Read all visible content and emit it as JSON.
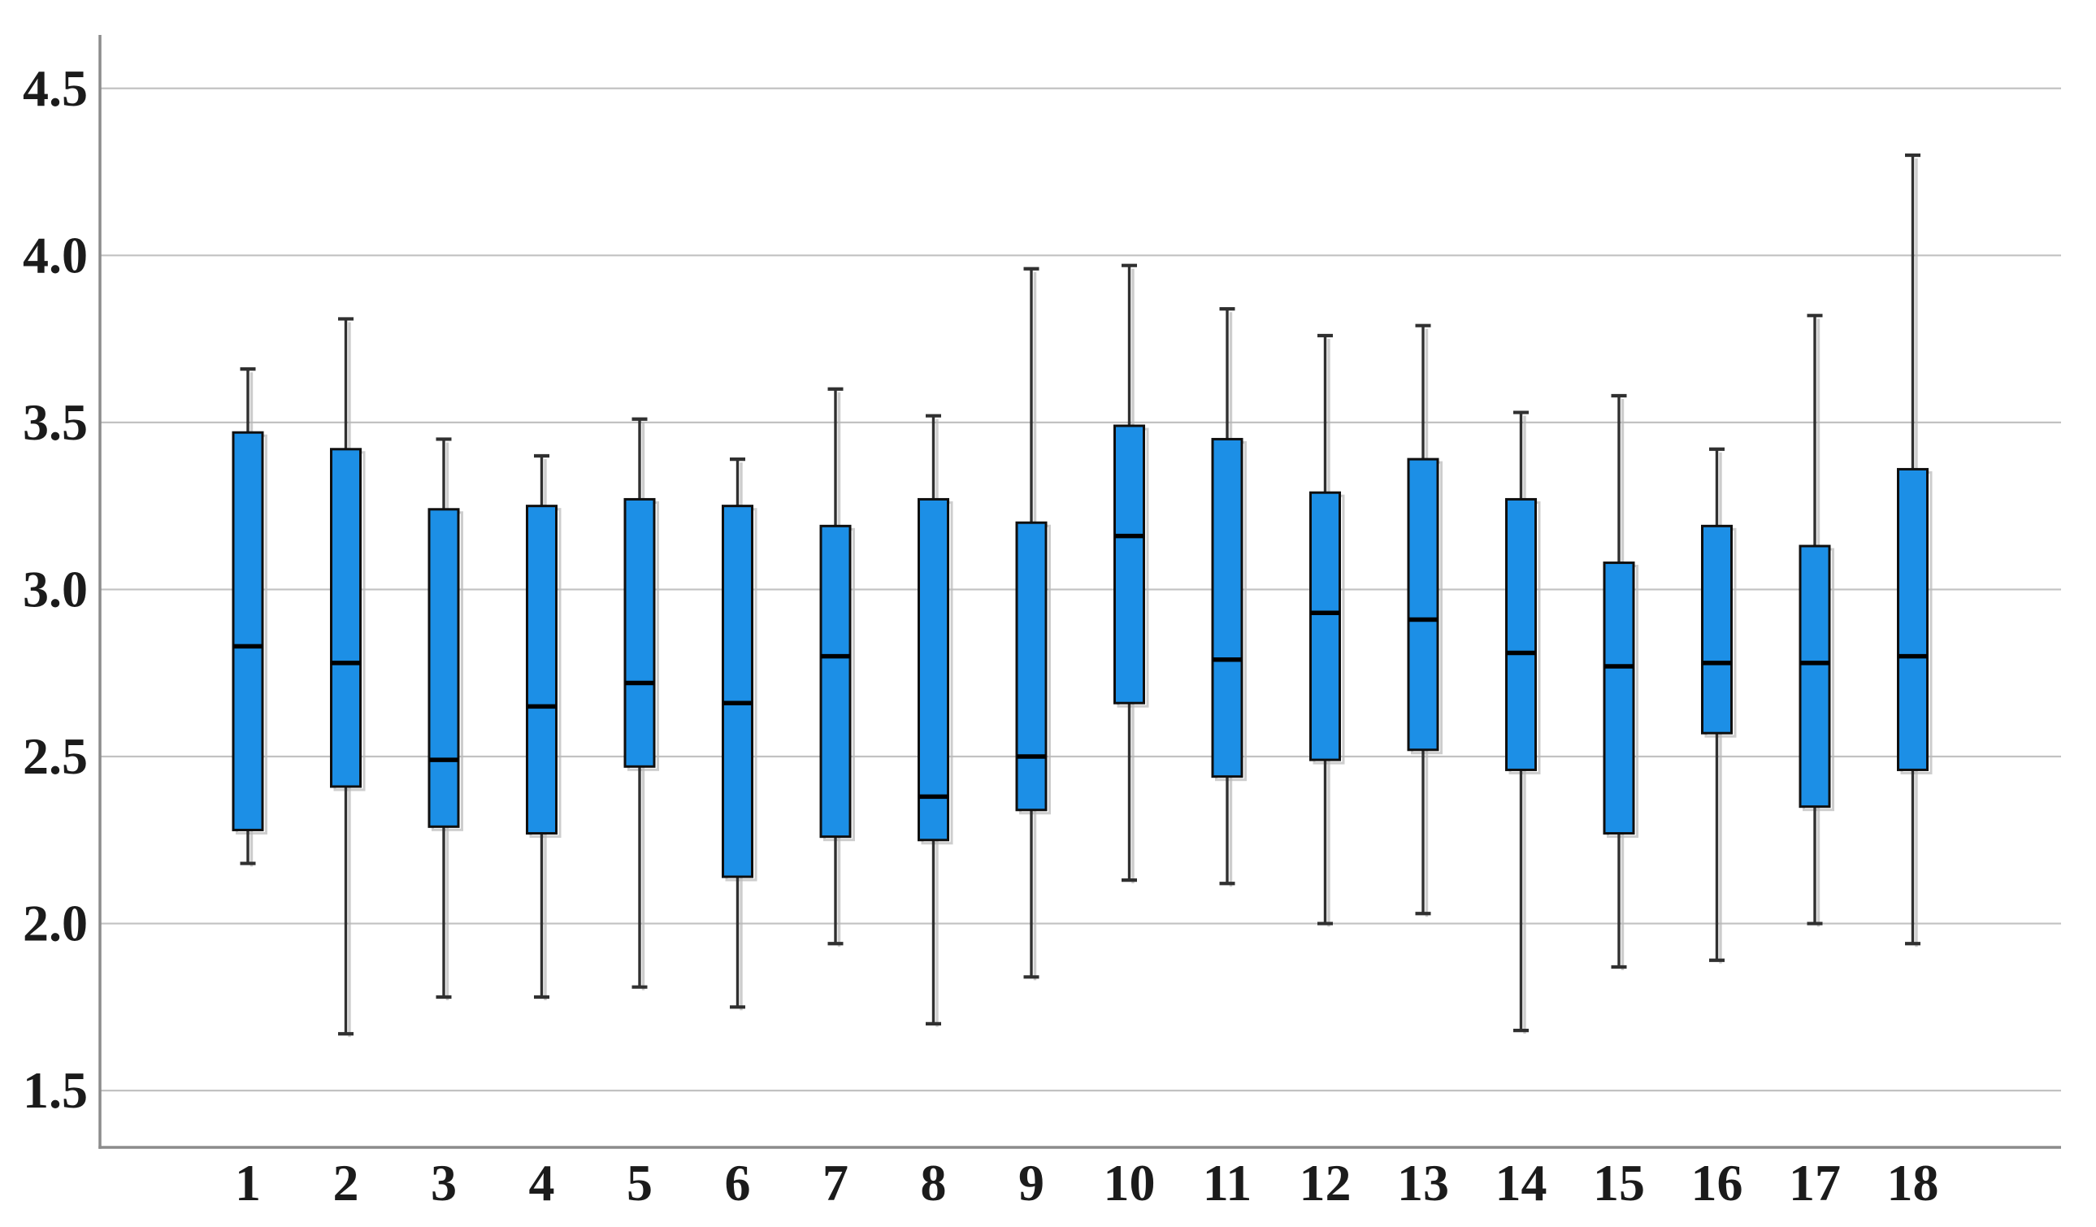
{
  "chart_data": {
    "type": "boxplot",
    "categories": [
      "1",
      "2",
      "3",
      "4",
      "5",
      "6",
      "7",
      "8",
      "9",
      "10",
      "11",
      "12",
      "13",
      "14",
      "15",
      "16",
      "17",
      "18"
    ],
    "boxes": [
      {
        "category": "1",
        "whisker_low": 2.18,
        "q1": 2.28,
        "median": 2.83,
        "q3": 3.47,
        "whisker_high": 3.66
      },
      {
        "category": "2",
        "whisker_low": 1.67,
        "q1": 2.41,
        "median": 2.78,
        "q3": 3.42,
        "whisker_high": 3.81
      },
      {
        "category": "3",
        "whisker_low": 1.78,
        "q1": 2.29,
        "median": 2.49,
        "q3": 3.24,
        "whisker_high": 3.45
      },
      {
        "category": "4",
        "whisker_low": 1.78,
        "q1": 2.27,
        "median": 2.65,
        "q3": 3.25,
        "whisker_high": 3.4
      },
      {
        "category": "5",
        "whisker_low": 1.81,
        "q1": 2.47,
        "median": 2.72,
        "q3": 3.27,
        "whisker_high": 3.51
      },
      {
        "category": "6",
        "whisker_low": 1.75,
        "q1": 2.14,
        "median": 2.66,
        "q3": 3.25,
        "whisker_high": 3.39
      },
      {
        "category": "7",
        "whisker_low": 1.94,
        "q1": 2.26,
        "median": 2.8,
        "q3": 3.19,
        "whisker_high": 3.6
      },
      {
        "category": "8",
        "whisker_low": 1.7,
        "q1": 2.25,
        "median": 2.38,
        "q3": 3.27,
        "whisker_high": 3.52
      },
      {
        "category": "9",
        "whisker_low": 1.84,
        "q1": 2.34,
        "median": 2.5,
        "q3": 3.2,
        "whisker_high": 3.96
      },
      {
        "category": "10",
        "whisker_low": 2.13,
        "q1": 2.66,
        "median": 3.16,
        "q3": 3.49,
        "whisker_high": 3.97
      },
      {
        "category": "11",
        "whisker_low": 2.12,
        "q1": 2.44,
        "median": 2.79,
        "q3": 3.45,
        "whisker_high": 3.84
      },
      {
        "category": "12",
        "whisker_low": 2.0,
        "q1": 2.49,
        "median": 2.93,
        "q3": 3.29,
        "whisker_high": 3.76
      },
      {
        "category": "13",
        "whisker_low": 2.03,
        "q1": 2.52,
        "median": 2.91,
        "q3": 3.39,
        "whisker_high": 3.79
      },
      {
        "category": "14",
        "whisker_low": 1.68,
        "q1": 2.46,
        "median": 2.81,
        "q3": 3.27,
        "whisker_high": 3.53
      },
      {
        "category": "15",
        "whisker_low": 1.87,
        "q1": 2.27,
        "median": 2.77,
        "q3": 3.08,
        "whisker_high": 3.58
      },
      {
        "category": "16",
        "whisker_low": 1.89,
        "q1": 2.57,
        "median": 2.78,
        "q3": 3.19,
        "whisker_high": 3.42
      },
      {
        "category": "17",
        "whisker_low": 2.0,
        "q1": 2.35,
        "median": 2.78,
        "q3": 3.13,
        "whisker_high": 3.82
      },
      {
        "category": "18",
        "whisker_low": 1.94,
        "q1": 2.46,
        "median": 2.8,
        "q3": 3.36,
        "whisker_high": 4.3
      }
    ],
    "yticks": [
      1.5,
      2.0,
      2.5,
      3.0,
      3.5,
      4.0,
      4.5
    ],
    "ytick_labels": [
      "1.5",
      "2.0",
      "2.5",
      "3.0",
      "3.5",
      "4.0",
      "4.5"
    ],
    "ylim": [
      1.33,
      4.66
    ],
    "xlabel": "",
    "ylabel": "",
    "grid": true,
    "legend": false,
    "colors": {
      "box_fill": "#1C8FE6",
      "box_border": "#0f0f0f",
      "median": "#000000",
      "whisker": "#303030",
      "gridline": "#c2c2c2",
      "axis": "#8c8c8c",
      "shadow": "#b8b8b8",
      "label": "#1b1b1b",
      "background": "#ffffff"
    }
  }
}
